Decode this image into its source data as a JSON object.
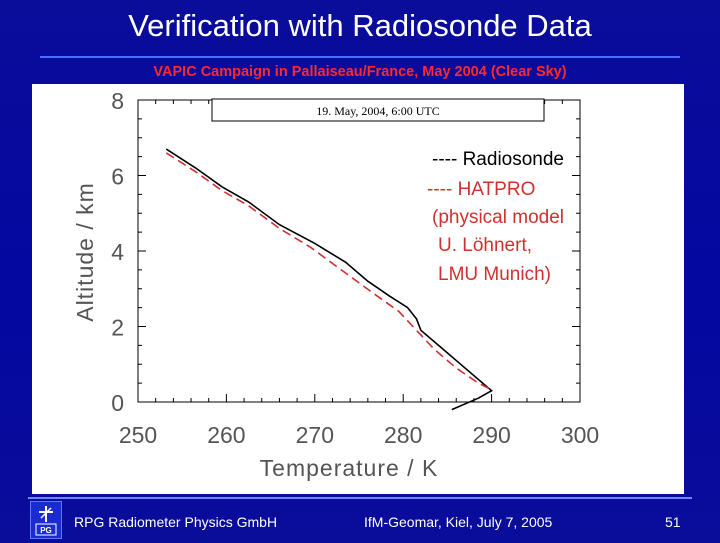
{
  "slide": {
    "title": "Verification with Radiosonde Data",
    "subtitle": "VAPIC Campaign in Pallaiseau/France, May 2004 (Clear Sky)",
    "footer_left": "RPG Radiometer Physics GmbH",
    "footer_center": "IfM-Geomar, Kiel, July 7, 2005",
    "page_number": "51"
  },
  "colors": {
    "background": "#0a0c9a",
    "title_text": "#ffffff",
    "subtitle_text": "#ff2a2a",
    "radiosonde_line": "#000000",
    "hatpro_line": "#d03030"
  },
  "chart_data": {
    "type": "line",
    "title": "19. May, 2004, 6:00 UTC",
    "xlabel": "Temperature / K",
    "ylabel": "Altitude / km",
    "xlim": [
      250,
      300
    ],
    "ylim": [
      0,
      8
    ],
    "x_ticks": [
      250,
      260,
      270,
      280,
      290,
      300
    ],
    "y_ticks": [
      0,
      2,
      4,
      6,
      8
    ],
    "legend_lines": [
      "---- Radiosonde",
      "---- HATPRO",
      "(physical model",
      "U. Löhnert,",
      "LMU Munich)"
    ],
    "series": [
      {
        "name": "Radiosonde",
        "style": "solid",
        "color": "#000000",
        "points": [
          [
            253.2,
            6.7
          ],
          [
            256.5,
            6.2
          ],
          [
            259.5,
            5.7
          ],
          [
            262.5,
            5.3
          ],
          [
            266.0,
            4.7
          ],
          [
            270.0,
            4.2
          ],
          [
            273.5,
            3.7
          ],
          [
            276.0,
            3.2
          ],
          [
            278.5,
            2.8
          ],
          [
            280.5,
            2.5
          ],
          [
            281.5,
            2.2
          ],
          [
            282.0,
            1.9
          ],
          [
            284.0,
            1.5
          ],
          [
            286.5,
            1.0
          ],
          [
            288.5,
            0.6
          ],
          [
            290.0,
            0.3
          ],
          [
            288.5,
            0.1
          ],
          [
            285.5,
            -0.2
          ]
        ]
      },
      {
        "name": "HATPRO",
        "style": "dashed",
        "color": "#d03030",
        "points": [
          [
            253.2,
            6.6
          ],
          [
            256.5,
            6.1
          ],
          [
            259.5,
            5.6
          ],
          [
            262.5,
            5.2
          ],
          [
            266.0,
            4.6
          ],
          [
            269.5,
            4.1
          ],
          [
            273.0,
            3.5
          ],
          [
            276.5,
            2.9
          ],
          [
            279.5,
            2.4
          ],
          [
            281.5,
            1.9
          ],
          [
            283.5,
            1.4
          ],
          [
            286.0,
            0.9
          ],
          [
            288.5,
            0.5
          ],
          [
            290.2,
            0.3
          ]
        ]
      }
    ]
  }
}
